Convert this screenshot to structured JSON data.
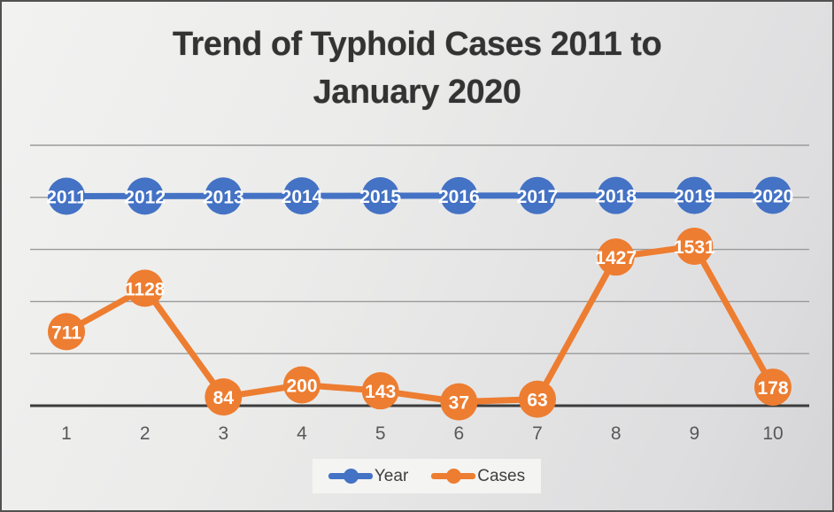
{
  "title": {
    "lines": [
      "Trend of Typhoid Cases 2011 to",
      "January 2020"
    ],
    "full": "Trend of Typhoid Cases 2011 to January 2020"
  },
  "chart_data": {
    "type": "line",
    "title": "Trend of Typhoid Cases 2011 to January 2020",
    "xlabel": "",
    "ylabel": "",
    "categories": [
      "1",
      "2",
      "3",
      "4",
      "5",
      "6",
      "7",
      "8",
      "9",
      "10"
    ],
    "series": [
      {
        "name": "Year",
        "color": "#4472c4",
        "values": [
          2011,
          2012,
          2013,
          2014,
          2015,
          2016,
          2017,
          2018,
          2019,
          2020
        ]
      },
      {
        "name": "Cases",
        "color": "#ed7d31",
        "values": [
          711,
          1128,
          84,
          200,
          143,
          37,
          63,
          1427,
          1531,
          178
        ]
      }
    ],
    "ylim": [
      0,
      2500
    ],
    "gridline_step": 500,
    "grid": true,
    "y_axis_labels_visible": false,
    "data_labels": true,
    "legend_position": "bottom",
    "marker_style": "circle",
    "colors": {
      "gridline": "#9a9a9a",
      "axis": "#3c3c3c",
      "data_label_text": "#ffffff",
      "tick_label": "#58585a"
    }
  }
}
